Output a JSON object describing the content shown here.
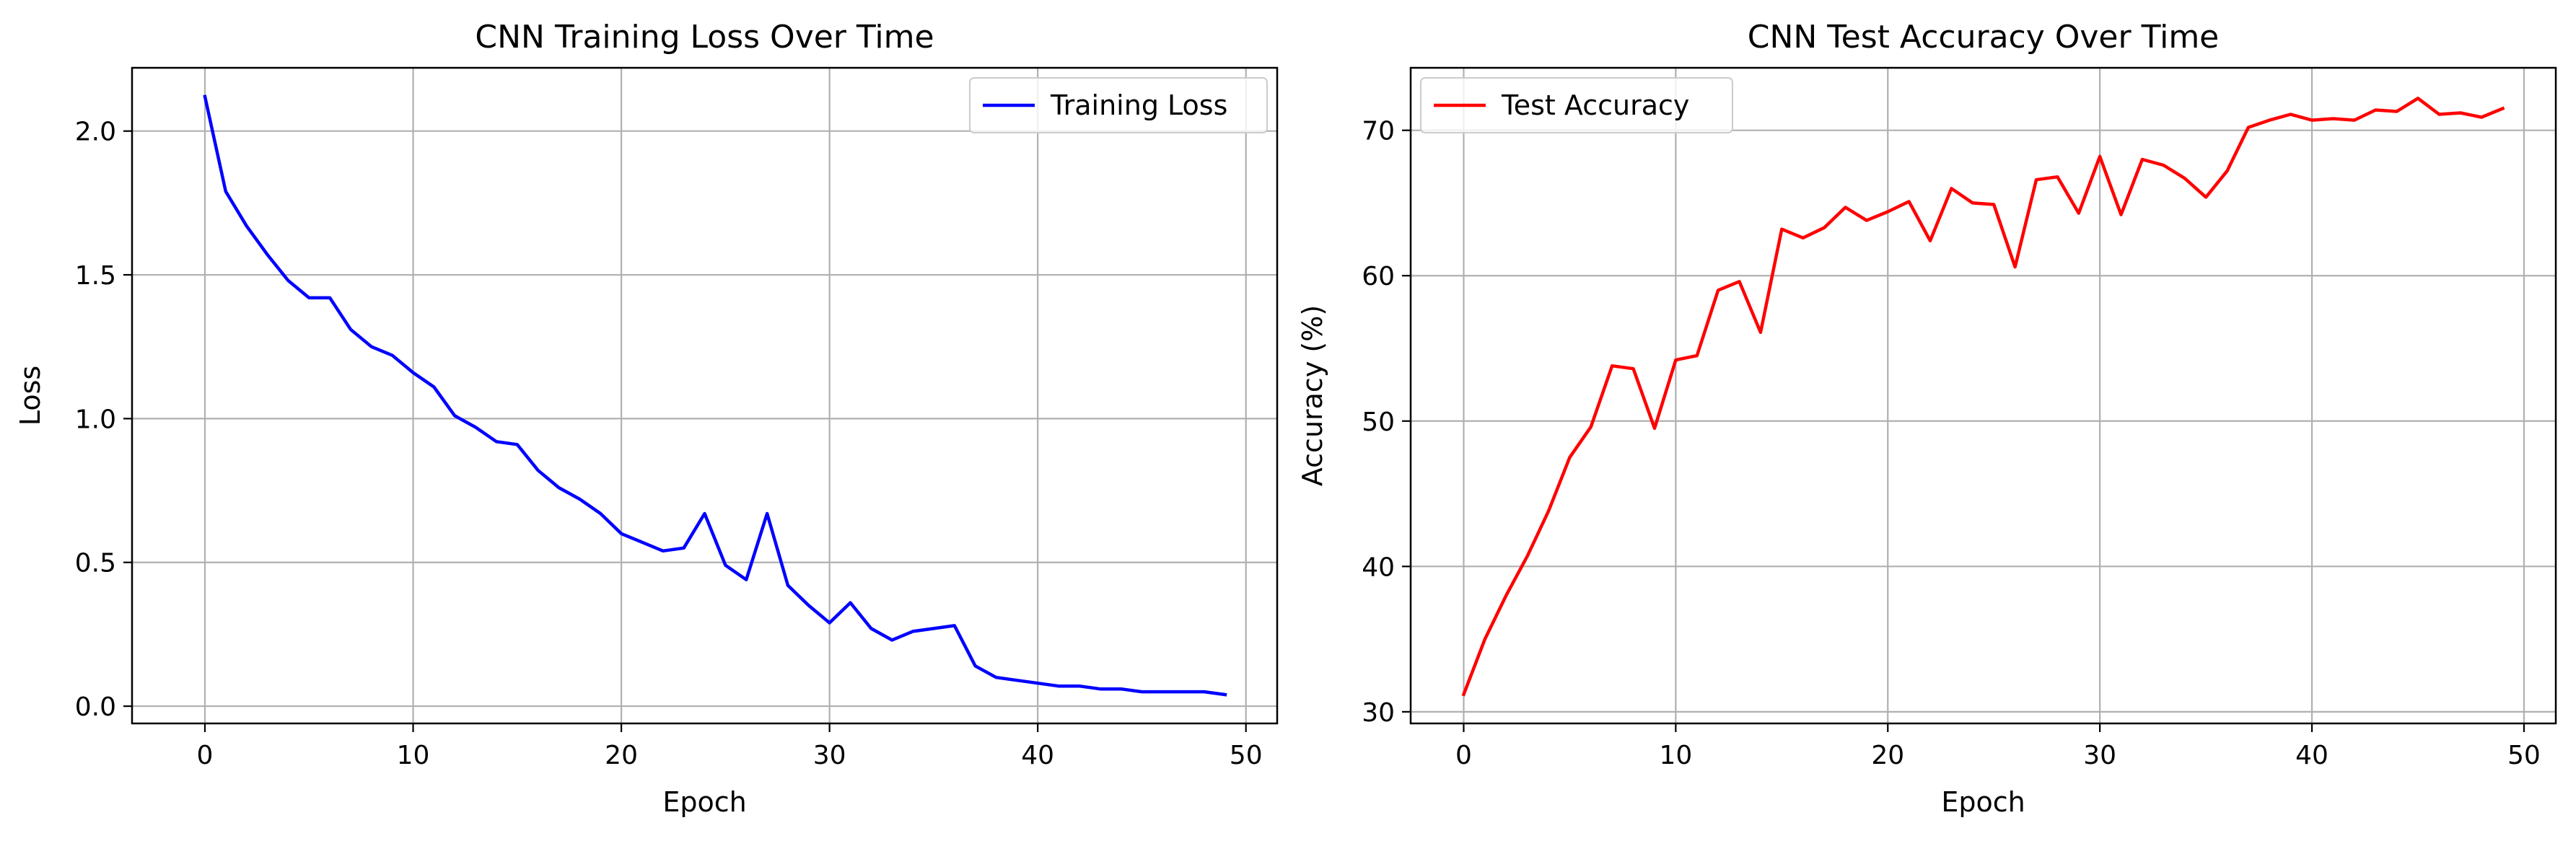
{
  "chart_data": [
    {
      "type": "line",
      "title": "CNN Training Loss Over Time",
      "xlabel": "Epoch",
      "ylabel": "Loss",
      "xlim": [
        -3.5,
        51.5
      ],
      "ylim": [
        -0.06,
        2.22
      ],
      "xticks": [
        0,
        10,
        20,
        30,
        40,
        50
      ],
      "yticks": [
        0.0,
        0.5,
        1.0,
        1.5,
        2.0
      ],
      "ytick_labels": [
        "0.0",
        "0.5",
        "1.0",
        "1.5",
        "2.0"
      ],
      "grid": true,
      "legend": "upper right",
      "series": [
        {
          "name": "Training Loss",
          "color": "#0000ff",
          "x": [
            0,
            1,
            2,
            3,
            4,
            5,
            6,
            7,
            8,
            9,
            10,
            11,
            12,
            13,
            14,
            15,
            16,
            17,
            18,
            19,
            20,
            21,
            22,
            23,
            24,
            25,
            26,
            27,
            28,
            29,
            30,
            31,
            32,
            33,
            34,
            35,
            36,
            37,
            38,
            39,
            40,
            41,
            42,
            43,
            44,
            45,
            46,
            47,
            48,
            49
          ],
          "y": [
            2.12,
            1.79,
            1.67,
            1.57,
            1.48,
            1.42,
            1.42,
            1.31,
            1.25,
            1.22,
            1.16,
            1.11,
            1.01,
            0.97,
            0.92,
            0.91,
            0.82,
            0.76,
            0.72,
            0.67,
            0.6,
            0.57,
            0.54,
            0.55,
            0.67,
            0.49,
            0.44,
            0.67,
            0.42,
            0.35,
            0.29,
            0.36,
            0.27,
            0.23,
            0.26,
            0.27,
            0.28,
            0.14,
            0.1,
            0.09,
            0.08,
            0.07,
            0.07,
            0.06,
            0.06,
            0.05,
            0.05,
            0.05,
            0.05,
            0.04
          ]
        }
      ]
    },
    {
      "type": "line",
      "title": "CNN Test Accuracy Over Time",
      "xlabel": "Epoch",
      "ylabel": "Accuracy (%)",
      "xlim": [
        -2.5,
        51.5
      ],
      "ylim": [
        29.2,
        74.3
      ],
      "xticks": [
        0,
        10,
        20,
        30,
        40,
        50
      ],
      "yticks": [
        30,
        40,
        50,
        60,
        70
      ],
      "ytick_labels": [
        "30",
        "40",
        "50",
        "60",
        "70"
      ],
      "grid": true,
      "legend": "upper left",
      "series": [
        {
          "name": "Test Accuracy",
          "color": "#ff0000",
          "x": [
            0,
            1,
            2,
            3,
            4,
            5,
            6,
            7,
            8,
            9,
            10,
            11,
            12,
            13,
            14,
            15,
            16,
            17,
            18,
            19,
            20,
            21,
            22,
            23,
            24,
            25,
            26,
            27,
            28,
            29,
            30,
            31,
            32,
            33,
            34,
            35,
            36,
            37,
            38,
            39,
            40,
            41,
            42,
            43,
            44,
            45,
            46,
            47,
            48,
            49
          ],
          "y": [
            31.2,
            35.0,
            38.0,
            40.7,
            43.8,
            47.5,
            49.6,
            53.8,
            53.6,
            49.5,
            54.2,
            54.5,
            59.0,
            59.6,
            56.1,
            63.2,
            62.6,
            63.3,
            64.7,
            63.8,
            64.4,
            65.1,
            62.4,
            66.0,
            65.0,
            64.9,
            60.6,
            66.6,
            66.8,
            64.3,
            68.2,
            64.2,
            68.0,
            67.6,
            66.7,
            65.4,
            67.2,
            70.2,
            70.7,
            71.1,
            70.7,
            70.8,
            70.7,
            71.4,
            71.3,
            72.2,
            71.1,
            71.2,
            70.9,
            71.5
          ]
        }
      ]
    }
  ]
}
